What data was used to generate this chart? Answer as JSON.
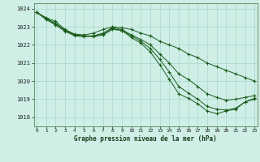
{
  "title": "Graphe pression niveau de la mer (hPa)",
  "background_color": "#ceeee6",
  "grid_color": "#aad8cc",
  "line_color": "#1a5c1a",
  "xlim": [
    -0.3,
    23.3
  ],
  "ylim": [
    1017.5,
    1024.3
  ],
  "yticks": [
    1018,
    1019,
    1020,
    1021,
    1022,
    1023,
    1024
  ],
  "xticks": [
    0,
    1,
    2,
    3,
    4,
    5,
    6,
    7,
    8,
    9,
    10,
    11,
    12,
    13,
    14,
    15,
    16,
    17,
    18,
    19,
    20,
    21,
    22,
    23
  ],
  "line1": [
    1023.8,
    1023.5,
    1023.3,
    1022.85,
    1022.6,
    1022.55,
    1022.65,
    1022.85,
    1023.0,
    1022.95,
    1022.85,
    1022.65,
    1022.5,
    1022.2,
    1022.0,
    1021.8,
    1021.5,
    1021.3,
    1021.0,
    1020.8,
    1020.6,
    1020.4,
    1020.2,
    1020.0
  ],
  "line2": [
    1023.8,
    1023.4,
    1023.1,
    1022.75,
    1022.5,
    1022.45,
    1022.5,
    1022.65,
    1022.95,
    1022.85,
    1022.55,
    1022.3,
    1022.0,
    1021.5,
    1021.0,
    1020.4,
    1020.1,
    1019.7,
    1019.3,
    1019.1,
    1018.95,
    1019.0,
    1019.1,
    1019.2
  ],
  "line3": [
    1023.8,
    1023.45,
    1023.15,
    1022.8,
    1022.55,
    1022.5,
    1022.5,
    1022.6,
    1022.9,
    1022.8,
    1022.5,
    1022.2,
    1021.8,
    1021.2,
    1020.5,
    1019.7,
    1019.35,
    1019.0,
    1018.6,
    1018.45,
    1018.4,
    1018.5,
    1018.85,
    1019.0
  ],
  "line4": [
    1023.8,
    1023.45,
    1023.2,
    1022.8,
    1022.55,
    1022.5,
    1022.45,
    1022.55,
    1022.85,
    1022.8,
    1022.4,
    1022.1,
    1021.6,
    1020.9,
    1020.1,
    1019.3,
    1019.05,
    1018.75,
    1018.35,
    1018.2,
    1018.35,
    1018.45,
    1018.85,
    1019.05
  ]
}
